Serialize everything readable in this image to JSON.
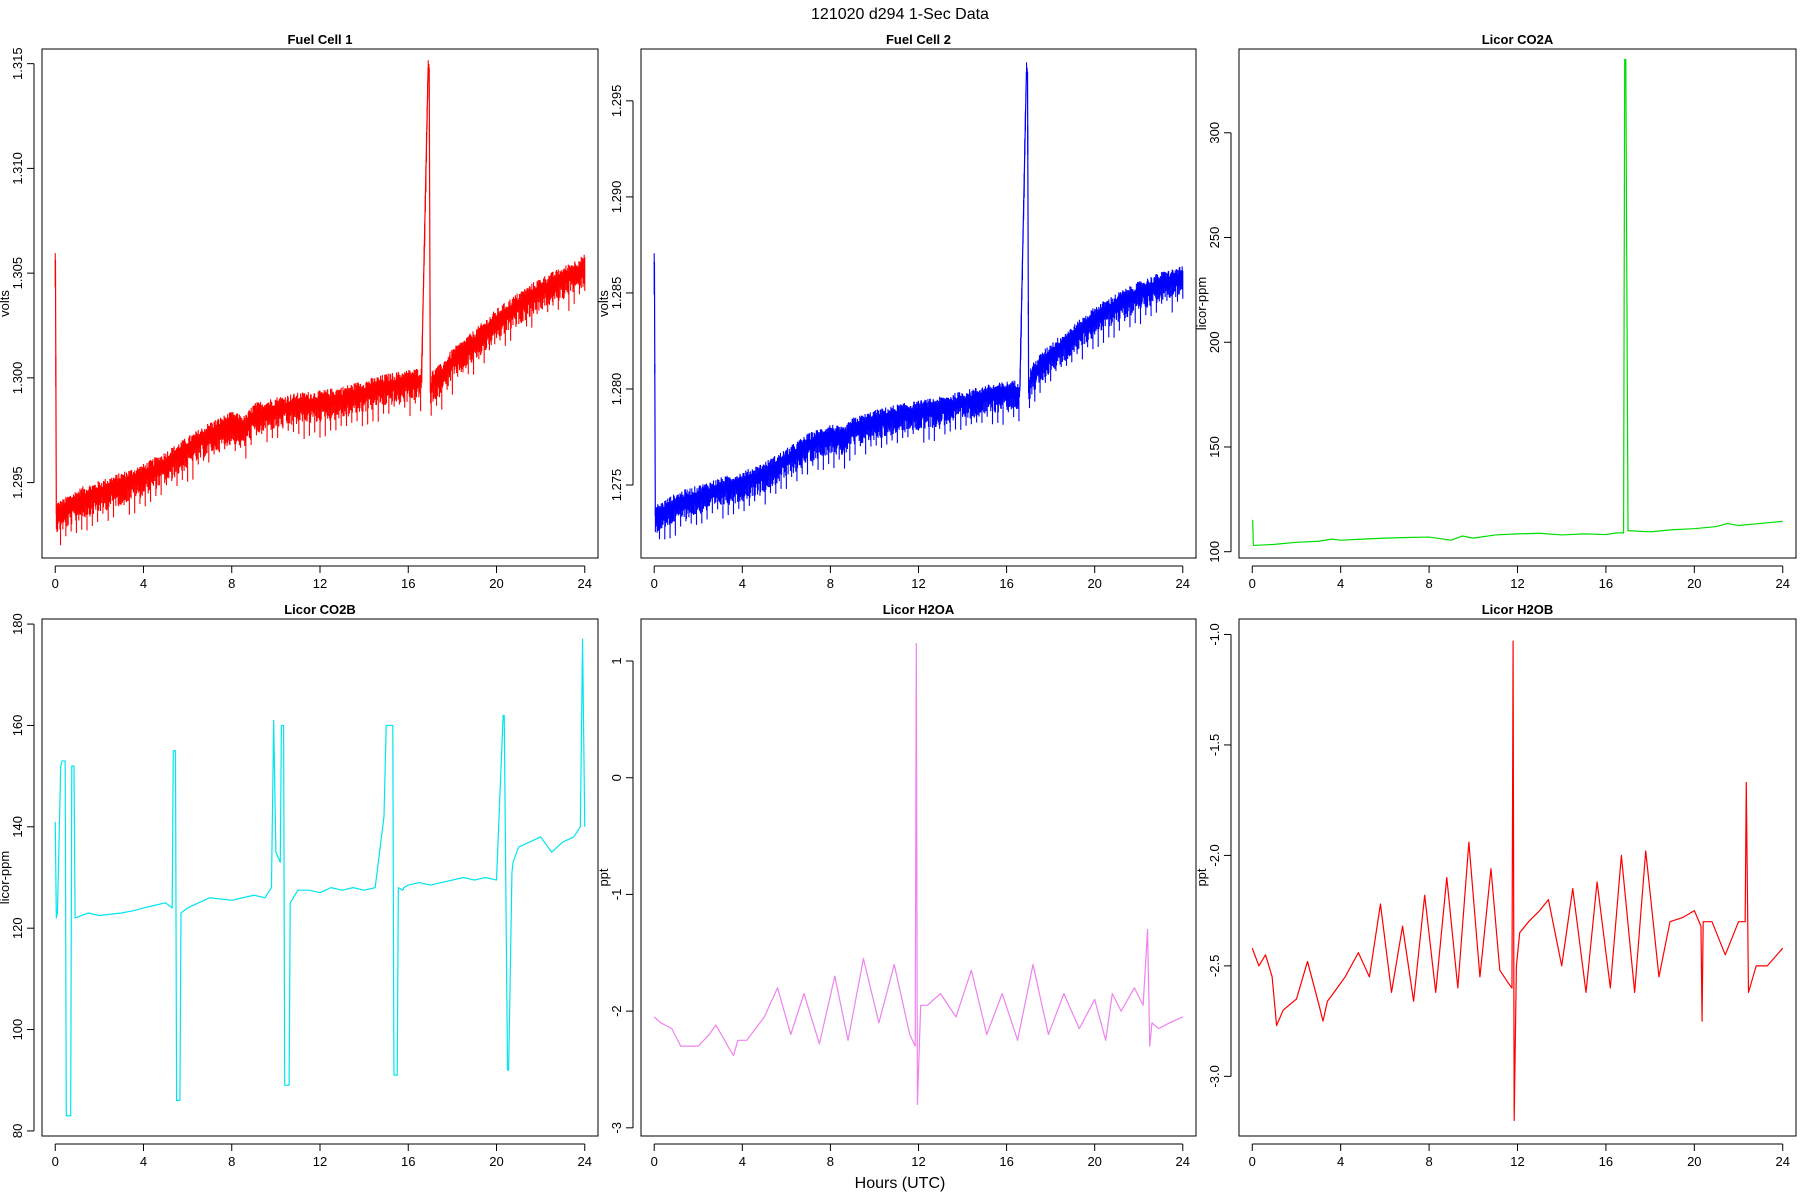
{
  "figure": {
    "title": "121020   d294   1-Sec Data",
    "xlabel": "Hours (UTC)"
  },
  "chart_data": [
    {
      "type": "line",
      "title": "Fuel Cell 1",
      "ylabel": "volts",
      "color": "#ff0000",
      "xlim": [
        -0.6,
        24.6
      ],
      "ylim": [
        1.2914,
        1.3157
      ],
      "xticks": [
        0,
        4,
        8,
        12,
        16,
        20,
        24
      ],
      "yticks": [
        1.295,
        1.3,
        1.305,
        1.31,
        1.315
      ],
      "ytick_labels": [
        "1.295",
        "1.300",
        "1.305",
        "1.310",
        "1.315"
      ],
      "x": [
        0,
        0.01,
        0.05,
        0.3,
        0.7,
        1.2,
        2,
        3,
        4,
        5,
        6,
        7,
        8,
        8.6,
        9,
        10,
        11,
        12,
        13,
        14,
        15,
        16,
        16.6,
        16.9,
        16.95,
        17.0,
        17.1,
        17.5,
        18,
        19,
        20,
        21,
        22,
        23,
        24
      ],
      "y": [
        1.3055,
        1.3056,
        1.2935,
        1.2936,
        1.2939,
        1.2942,
        1.2945,
        1.2949,
        1.2953,
        1.2959,
        1.2966,
        1.2973,
        1.2978,
        1.2976,
        1.2982,
        1.2985,
        1.2987,
        1.2988,
        1.299,
        1.2993,
        1.2996,
        1.2998,
        1.2999,
        1.3148,
        1.3148,
        1.2993,
        1.2998,
        1.3001,
        1.3008,
        1.3017,
        1.3027,
        1.3035,
        1.3042,
        1.3047,
        1.3053
      ],
      "noise_band": 0.0012
    },
    {
      "type": "line",
      "title": "Fuel Cell 2",
      "ylabel": "volts",
      "color": "#0000ff",
      "xlim": [
        -0.6,
        24.6
      ],
      "ylim": [
        1.2712,
        1.2977
      ],
      "xticks": [
        0,
        4,
        8,
        12,
        16,
        20,
        24
      ],
      "yticks": [
        1.275,
        1.28,
        1.285,
        1.29,
        1.295
      ],
      "ytick_labels": [
        "1.275",
        "1.280",
        "1.285",
        "1.290",
        "1.295"
      ],
      "x": [
        0,
        0.01,
        0.05,
        0.3,
        0.7,
        1.2,
        2,
        3,
        4,
        5,
        6,
        7,
        8,
        8.6,
        9,
        10,
        11,
        12,
        13,
        14,
        15,
        16,
        16.6,
        16.9,
        16.95,
        17.0,
        17.1,
        17.5,
        18,
        19,
        20,
        21,
        22,
        23,
        24
      ],
      "y": [
        1.2865,
        1.2866,
        1.2734,
        1.2735,
        1.2738,
        1.2741,
        1.2744,
        1.2748,
        1.2751,
        1.2756,
        1.2763,
        1.2771,
        1.2776,
        1.2774,
        1.2779,
        1.2783,
        1.2786,
        1.2788,
        1.279,
        1.2793,
        1.2796,
        1.2798,
        1.2799,
        1.2965,
        1.2965,
        1.2798,
        1.2806,
        1.2812,
        1.2818,
        1.2827,
        1.2837,
        1.2844,
        1.285,
        1.2855,
        1.2858
      ],
      "noise_band": 0.0012
    },
    {
      "type": "line",
      "title": "Licor CO2A",
      "ylabel": "licor-ppm",
      "color": "#00dd00",
      "xlim": [
        -0.6,
        24.6
      ],
      "ylim": [
        97,
        340
      ],
      "xticks": [
        0,
        4,
        8,
        12,
        16,
        20,
        24
      ],
      "yticks": [
        100,
        150,
        200,
        250,
        300
      ],
      "ytick_labels": [
        "100",
        "150",
        "200",
        "250",
        "300"
      ],
      "x": [
        0,
        0.02,
        0.05,
        1,
        2,
        3,
        3.6,
        4,
        5,
        6,
        7,
        8,
        9,
        9.5,
        10,
        11,
        12,
        13,
        14,
        15,
        16,
        16.5,
        16.8,
        16.85,
        16.9,
        17.0,
        17.1,
        18,
        19,
        20,
        21,
        21.5,
        22,
        23,
        24
      ],
      "y": [
        115,
        115,
        103,
        103.5,
        104.5,
        105,
        106,
        105.5,
        106,
        106.5,
        106.8,
        107,
        105.5,
        107.5,
        106.5,
        108,
        108.5,
        108.8,
        108,
        108.5,
        108.2,
        109,
        109,
        335,
        335,
        110,
        110,
        109.5,
        110.5,
        111,
        112,
        113.5,
        112.5,
        113.5,
        114.5
      ]
    },
    {
      "type": "line",
      "title": "Licor CO2B",
      "ylabel": "licor-ppm",
      "color": "#00e5ee",
      "xlim": [
        -0.6,
        24.6
      ],
      "ylim": [
        79,
        181
      ],
      "xticks": [
        0,
        4,
        8,
        12,
        16,
        20,
        24
      ],
      "yticks": [
        80,
        100,
        120,
        140,
        160,
        180
      ],
      "ytick_labels": [
        "80",
        "100",
        "120",
        "140",
        "160",
        "180"
      ],
      "x": [
        0,
        0.05,
        0.1,
        0.25,
        0.3,
        0.45,
        0.5,
        0.7,
        0.75,
        0.85,
        0.9,
        1.5,
        2,
        3,
        3.6,
        4,
        4.5,
        5,
        5.3,
        5.35,
        5.45,
        5.5,
        5.65,
        5.7,
        6,
        6.5,
        7,
        8,
        8.5,
        9,
        9.5,
        9.8,
        9.9,
        10.0,
        10.2,
        10.25,
        10.35,
        10.4,
        10.6,
        10.65,
        11,
        11.5,
        12,
        12.5,
        13,
        13.5,
        14,
        14.5,
        14.9,
        15.0,
        15.3,
        15.35,
        15.5,
        15.55,
        15.75,
        15.8,
        16,
        16.5,
        17,
        17.5,
        18,
        18.5,
        19,
        19.5,
        20,
        20.3,
        20.35,
        20.5,
        20.55,
        20.7,
        20.75,
        21,
        21.5,
        22,
        22.5,
        23,
        23.5,
        23.8,
        23.9,
        24
      ],
      "y": [
        141,
        122,
        123,
        152,
        153,
        153,
        83,
        83,
        152,
        152,
        122,
        123,
        122.5,
        123,
        123.5,
        124,
        124.5,
        125,
        124,
        155,
        155,
        86,
        86,
        123,
        124,
        125,
        126,
        125.5,
        126,
        126.5,
        126,
        128,
        161,
        135,
        133,
        160,
        160,
        89,
        89,
        125,
        127.5,
        127.5,
        127,
        128,
        127.5,
        128,
        127.5,
        128,
        142,
        160,
        160,
        91,
        91,
        128,
        127.5,
        128,
        128.5,
        129,
        128.5,
        129,
        129.5,
        130,
        129.5,
        130,
        129.5,
        162,
        162,
        92,
        92,
        131,
        133,
        136,
        137,
        138,
        135,
        137,
        138,
        140,
        177,
        140
      ]
    },
    {
      "type": "line",
      "title": "Licor H2OA",
      "ylabel": "ppt",
      "color": "#ee82ee",
      "xlim": [
        -0.6,
        24.6
      ],
      "ylim": [
        -3.07,
        1.36
      ],
      "xticks": [
        0,
        4,
        8,
        12,
        16,
        20,
        24
      ],
      "yticks": [
        -3,
        -2,
        -1,
        0,
        1
      ],
      "ytick_labels": [
        "-3",
        "-2",
        "-1",
        "0",
        "1"
      ],
      "x": [
        0,
        0.3,
        0.5,
        0.8,
        1.2,
        1.5,
        2,
        2.5,
        2.8,
        3.2,
        3.4,
        3.6,
        3.8,
        4.2,
        4.6,
        5,
        5.6,
        6.2,
        6.8,
        7.5,
        8.2,
        8.8,
        9.5,
        10.2,
        10.9,
        11.6,
        11.85,
        11.9,
        11.95,
        12.1,
        12.4,
        13,
        13.7,
        14.4,
        15.1,
        15.8,
        16.5,
        17.2,
        17.9,
        18.6,
        19.3,
        20,
        20.5,
        20.8,
        21.2,
        21.8,
        22.2,
        22.4,
        22.5,
        22.6,
        22.9,
        23.4,
        24
      ],
      "y": [
        -2.05,
        -2.1,
        -2.12,
        -2.15,
        -2.3,
        -2.3,
        -2.3,
        -2.2,
        -2.12,
        -2.25,
        -2.32,
        -2.38,
        -2.25,
        -2.25,
        -2.15,
        -2.05,
        -1.8,
        -2.2,
        -1.85,
        -2.28,
        -1.7,
        -2.25,
        -1.55,
        -2.1,
        -1.6,
        -2.2,
        -2.3,
        1.15,
        -2.8,
        -1.95,
        -1.95,
        -1.85,
        -2.05,
        -1.65,
        -2.2,
        -1.85,
        -2.25,
        -1.6,
        -2.2,
        -1.85,
        -2.15,
        -1.9,
        -2.25,
        -1.85,
        -2.0,
        -1.8,
        -1.95,
        -1.3,
        -2.3,
        -2.1,
        -2.15,
        -2.1,
        -2.05
      ]
    },
    {
      "type": "line",
      "title": "Licor H2OB",
      "ylabel": "ppt",
      "color": "#ff0000",
      "xlim": [
        -0.6,
        24.6
      ],
      "ylim": [
        -3.27,
        -0.93
      ],
      "xticks": [
        0,
        4,
        8,
        12,
        16,
        20,
        24
      ],
      "yticks": [
        -3,
        -2.5,
        -2,
        -1.5,
        -1
      ],
      "ytick_labels": [
        "-3.0",
        "-2.5",
        "-2.0",
        "-1.5",
        "-1.0"
      ],
      "x": [
        0,
        0.3,
        0.6,
        0.9,
        1.1,
        1.4,
        2,
        2.5,
        3,
        3.2,
        3.4,
        3.7,
        4.2,
        4.8,
        5.3,
        5.8,
        6.3,
        6.8,
        7.3,
        7.8,
        8.3,
        8.8,
        9.3,
        9.8,
        10.3,
        10.8,
        11.2,
        11.6,
        11.75,
        11.8,
        11.85,
        11.95,
        12.1,
        12.5,
        13,
        13.4,
        14,
        14.5,
        15.1,
        15.6,
        16.2,
        16.7,
        17.3,
        17.8,
        18.4,
        18.9,
        19.5,
        20,
        20.3,
        20.35,
        20.4,
        20.8,
        21.4,
        22,
        22.3,
        22.35,
        22.45,
        22.8,
        23.3,
        24
      ],
      "y": [
        -2.42,
        -2.5,
        -2.45,
        -2.55,
        -2.77,
        -2.7,
        -2.65,
        -2.48,
        -2.67,
        -2.75,
        -2.66,
        -2.62,
        -2.55,
        -2.44,
        -2.55,
        -2.22,
        -2.62,
        -2.32,
        -2.66,
        -2.18,
        -2.62,
        -2.1,
        -2.6,
        -1.94,
        -2.55,
        -2.06,
        -2.52,
        -2.58,
        -2.6,
        -1.03,
        -3.2,
        -2.5,
        -2.35,
        -2.3,
        -2.25,
        -2.2,
        -2.5,
        -2.15,
        -2.62,
        -2.12,
        -2.6,
        -2.0,
        -2.62,
        -1.98,
        -2.55,
        -2.3,
        -2.28,
        -2.25,
        -2.32,
        -2.75,
        -2.3,
        -2.3,
        -2.45,
        -2.3,
        -2.3,
        -1.67,
        -2.62,
        -2.5,
        -2.5,
        -2.42
      ]
    }
  ]
}
